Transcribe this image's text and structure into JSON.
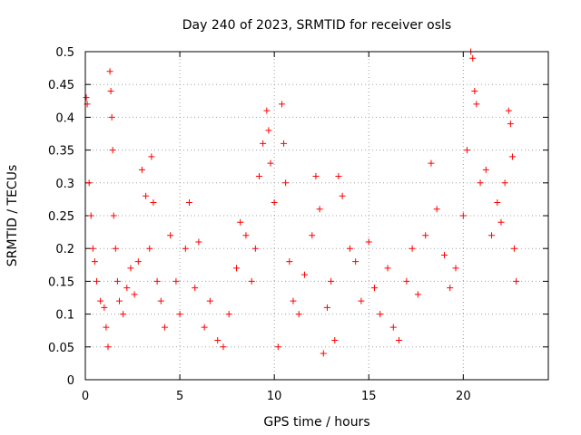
{
  "chart_data": {
    "type": "scatter",
    "title": "Day 240 of 2023, SRMTID for receiver osls",
    "xlabel": "GPS time / hours",
    "ylabel": "SRMTID / TECUs",
    "xlim": [
      0,
      24.5
    ],
    "ylim": [
      0,
      0.5
    ],
    "x_ticks": [
      0,
      5,
      10,
      15,
      20
    ],
    "y_ticks": [
      0,
      0.05,
      0.1,
      0.15,
      0.2,
      0.25,
      0.3,
      0.35,
      0.4,
      0.45,
      0.5
    ],
    "x_tick_labels": [
      "0",
      "5",
      "10",
      "15",
      "20"
    ],
    "y_tick_labels": [
      "0",
      "0.05",
      "0.1",
      "0.15",
      "0.2",
      "0.25",
      "0.3",
      "0.35",
      "0.4",
      "0.45",
      "0.5"
    ],
    "grid": true,
    "marker": "+",
    "color": "#ff0000",
    "series": [
      {
        "points": [
          [
            0.05,
            0.43
          ],
          [
            0.1,
            0.42
          ],
          [
            0.2,
            0.3
          ],
          [
            0.3,
            0.25
          ],
          [
            0.4,
            0.2
          ],
          [
            0.5,
            0.18
          ],
          [
            0.6,
            0.15
          ],
          [
            0.8,
            0.12
          ],
          [
            1.0,
            0.11
          ],
          [
            1.1,
            0.08
          ],
          [
            1.2,
            0.05
          ],
          [
            1.3,
            0.47
          ],
          [
            1.35,
            0.44
          ],
          [
            1.4,
            0.4
          ],
          [
            1.45,
            0.35
          ],
          [
            1.5,
            0.25
          ],
          [
            1.6,
            0.2
          ],
          [
            1.7,
            0.15
          ],
          [
            1.8,
            0.12
          ],
          [
            2.0,
            0.1
          ],
          [
            2.2,
            0.14
          ],
          [
            2.4,
            0.17
          ],
          [
            2.6,
            0.13
          ],
          [
            2.8,
            0.18
          ],
          [
            3.0,
            0.32
          ],
          [
            3.2,
            0.28
          ],
          [
            3.4,
            0.2
          ],
          [
            3.5,
            0.34
          ],
          [
            3.6,
            0.27
          ],
          [
            3.8,
            0.15
          ],
          [
            4.0,
            0.12
          ],
          [
            4.2,
            0.08
          ],
          [
            4.5,
            0.22
          ],
          [
            4.8,
            0.15
          ],
          [
            5.0,
            0.1
          ],
          [
            5.3,
            0.2
          ],
          [
            5.5,
            0.27
          ],
          [
            5.8,
            0.14
          ],
          [
            6.0,
            0.21
          ],
          [
            6.3,
            0.08
          ],
          [
            6.6,
            0.12
          ],
          [
            7.0,
            0.06
          ],
          [
            7.3,
            0.05
          ],
          [
            7.6,
            0.1
          ],
          [
            8.0,
            0.17
          ],
          [
            8.2,
            0.24
          ],
          [
            8.5,
            0.22
          ],
          [
            8.8,
            0.15
          ],
          [
            9.0,
            0.2
          ],
          [
            9.2,
            0.31
          ],
          [
            9.4,
            0.36
          ],
          [
            9.6,
            0.41
          ],
          [
            9.7,
            0.38
          ],
          [
            9.8,
            0.33
          ],
          [
            10.0,
            0.27
          ],
          [
            10.2,
            0.05
          ],
          [
            10.4,
            0.42
          ],
          [
            10.5,
            0.36
          ],
          [
            10.6,
            0.3
          ],
          [
            10.8,
            0.18
          ],
          [
            11.0,
            0.12
          ],
          [
            11.3,
            0.1
          ],
          [
            11.6,
            0.16
          ],
          [
            12.0,
            0.22
          ],
          [
            12.2,
            0.31
          ],
          [
            12.4,
            0.26
          ],
          [
            12.6,
            0.04
          ],
          [
            12.8,
            0.11
          ],
          [
            13.0,
            0.15
          ],
          [
            13.2,
            0.06
          ],
          [
            13.4,
            0.31
          ],
          [
            13.6,
            0.28
          ],
          [
            14.0,
            0.2
          ],
          [
            14.3,
            0.18
          ],
          [
            14.6,
            0.12
          ],
          [
            15.0,
            0.21
          ],
          [
            15.3,
            0.14
          ],
          [
            15.6,
            0.1
          ],
          [
            16.0,
            0.17
          ],
          [
            16.3,
            0.08
          ],
          [
            16.6,
            0.06
          ],
          [
            17.0,
            0.15
          ],
          [
            17.3,
            0.2
          ],
          [
            17.6,
            0.13
          ],
          [
            18.0,
            0.22
          ],
          [
            18.3,
            0.33
          ],
          [
            18.6,
            0.26
          ],
          [
            19.0,
            0.19
          ],
          [
            19.3,
            0.14
          ],
          [
            19.6,
            0.17
          ],
          [
            20.0,
            0.25
          ],
          [
            20.2,
            0.35
          ],
          [
            20.4,
            0.5
          ],
          [
            20.5,
            0.49
          ],
          [
            20.6,
            0.44
          ],
          [
            20.7,
            0.42
          ],
          [
            20.9,
            0.3
          ],
          [
            21.2,
            0.32
          ],
          [
            21.5,
            0.22
          ],
          [
            21.8,
            0.27
          ],
          [
            22.0,
            0.24
          ],
          [
            22.2,
            0.3
          ],
          [
            22.4,
            0.41
          ],
          [
            22.5,
            0.39
          ],
          [
            22.6,
            0.34
          ],
          [
            22.7,
            0.2
          ],
          [
            22.8,
            0.15
          ]
        ]
      }
    ]
  }
}
